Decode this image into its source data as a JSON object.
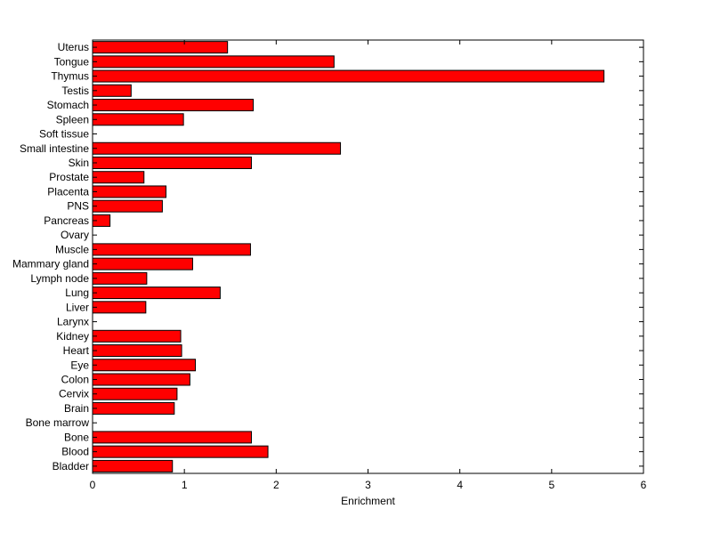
{
  "chart_data": {
    "type": "bar",
    "orientation": "horizontal",
    "title": "",
    "xlabel": "Enrichment",
    "ylabel": "",
    "xlim": [
      0,
      6
    ],
    "x_ticks": [
      0,
      1,
      2,
      3,
      4,
      5,
      6
    ],
    "grid": false,
    "bar_color": "#ff0000",
    "bar_edge_color": "#000000",
    "categories": [
      "Bladder",
      "Blood",
      "Bone",
      "Bone marrow",
      "Brain",
      "Cervix",
      "Colon",
      "Eye",
      "Heart",
      "Kidney",
      "Larynx",
      "Liver",
      "Lung",
      "Lymph node",
      "Mammary gland",
      "Muscle",
      "Ovary",
      "Pancreas",
      "PNS",
      "Placenta",
      "Prostate",
      "Skin",
      "Small intestine",
      "Soft tissue",
      "Spleen",
      "Stomach",
      "Testis",
      "Thymus",
      "Tongue",
      "Uterus"
    ],
    "values": [
      0.87,
      1.91,
      1.73,
      0.0,
      0.89,
      0.92,
      1.06,
      1.12,
      0.97,
      0.96,
      0.0,
      0.58,
      1.39,
      0.59,
      1.09,
      1.72,
      0.0,
      0.19,
      0.76,
      0.8,
      0.56,
      1.73,
      2.7,
      0.0,
      0.99,
      1.75,
      0.42,
      5.57,
      2.63,
      1.47
    ]
  }
}
